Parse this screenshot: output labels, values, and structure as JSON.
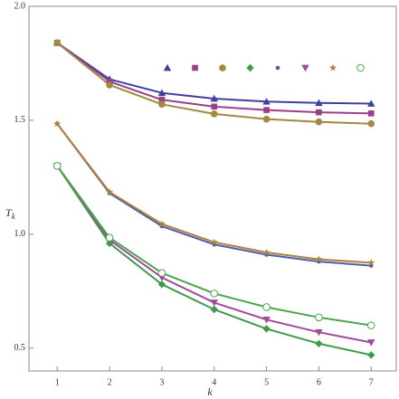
{
  "chart_data": {
    "type": "line",
    "xlabel": "k",
    "ylabel": "T",
    "ylabel_subscript": "k",
    "x": [
      1,
      2,
      3,
      4,
      5,
      6,
      7
    ],
    "xlim": [
      0.46,
      7.48
    ],
    "ylim": [
      0.4,
      2.0
    ],
    "xticks": [
      1,
      2,
      3,
      4,
      5,
      6,
      7
    ],
    "yticks": [
      {
        "value": 0.5,
        "label": "0.5"
      },
      {
        "value": 1.0,
        "label": "1.0"
      },
      {
        "value": 1.5,
        "label": "1.5"
      },
      {
        "value": 2.0,
        "label": "2.0"
      }
    ],
    "grid": false,
    "legend": "top-right",
    "series": [
      {
        "color": "#3f3fa0",
        "marker": "triangle",
        "values": [
          1.84,
          1.68,
          1.62,
          1.595,
          1.582,
          1.576,
          1.573
        ]
      },
      {
        "color": "#993f8c",
        "marker": "square",
        "values": [
          1.84,
          1.67,
          1.59,
          1.56,
          1.545,
          1.535,
          1.53
        ]
      },
      {
        "color": "#a08a3f",
        "marker": "circle",
        "values": [
          1.84,
          1.655,
          1.57,
          1.528,
          1.505,
          1.493,
          1.485
        ]
      },
      {
        "color": "#3f9a4a",
        "marker": "diamond",
        "values": [
          1.3,
          0.96,
          0.78,
          0.67,
          0.585,
          0.52,
          0.47
        ]
      },
      {
        "color": "#4a5fa8",
        "marker": "dot",
        "values": [
          1.485,
          1.18,
          1.035,
          0.955,
          0.91,
          0.88,
          0.862
        ]
      },
      {
        "color": "#a04a9a",
        "marker": "down-triangle",
        "values": [
          1.3,
          0.975,
          0.81,
          0.7,
          0.625,
          0.57,
          0.525
        ]
      },
      {
        "color": "#b0803f",
        "marker": "star",
        "values": [
          1.485,
          1.185,
          1.045,
          0.965,
          0.92,
          0.89,
          0.875
        ]
      },
      {
        "color": "#4aa64a",
        "marker": "open-circle",
        "values": [
          1.3,
          0.985,
          0.83,
          0.74,
          0.68,
          0.635,
          0.6
        ]
      }
    ]
  }
}
